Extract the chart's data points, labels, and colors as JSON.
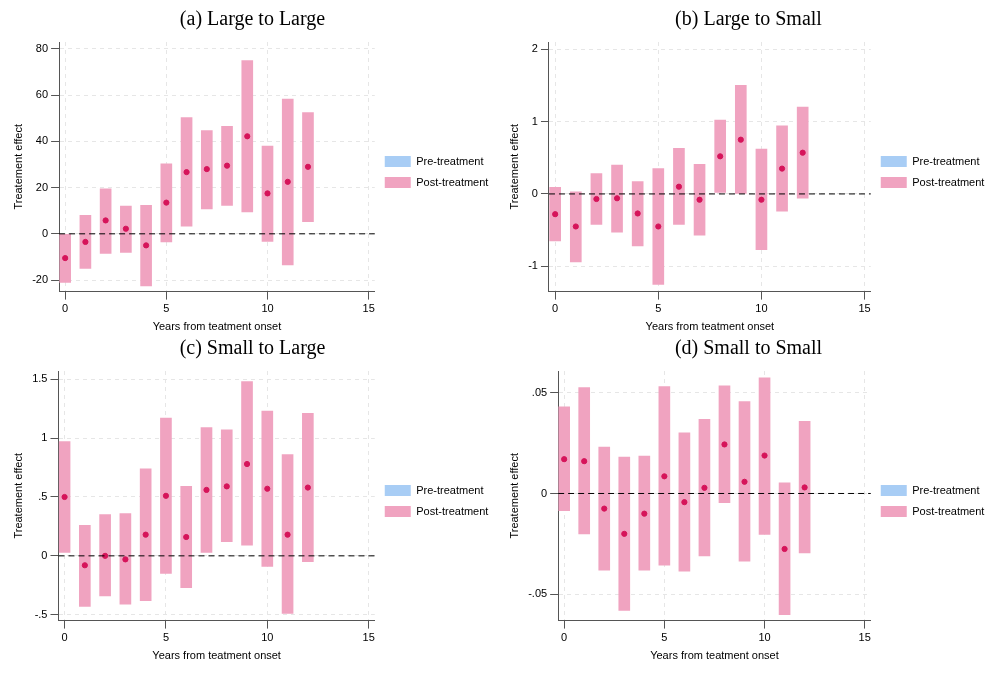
{
  "chart_data": [
    {
      "type": "scatter",
      "title": "(a) Large to Large",
      "xlabel": "Years from teatment onset",
      "ylabel": "Treatement effect",
      "xlim": [
        -0.3,
        15.3
      ],
      "xticks": [
        0,
        5,
        10,
        15
      ],
      "ylim": [
        -25,
        83
      ],
      "yticks": [
        -20,
        0,
        20,
        40,
        60,
        80
      ],
      "grid": true,
      "legend": "right",
      "marker": "circle",
      "x": [
        0,
        1,
        2,
        3,
        4,
        5,
        6,
        7,
        8,
        9,
        10,
        11,
        12
      ],
      "ref_lines": [
        {
          "axis": "y",
          "value": 0,
          "color": "#000000",
          "line_style": "dashed"
        }
      ],
      "series": [
        {
          "name": "Pre-treatment",
          "type": "bar",
          "color": "#a8cdf5",
          "values": [
            null,
            null,
            null,
            null,
            null,
            null,
            null,
            null,
            null,
            null,
            null,
            null,
            null
          ]
        },
        {
          "name": "Post-treatment",
          "type": "bar",
          "color": "#f0a3c0",
          "values": [
            21,
            23,
            28,
            20,
            34.8,
            33.8,
            47,
            33.9,
            34.2,
            65.5,
            41.3,
            71.8,
            47.2
          ],
          "base": [
            -21,
            -15,
            -8.5,
            -8,
            -22.5,
            -3.5,
            3.3,
            10.8,
            12.3,
            9.5,
            -3.3,
            -13.5,
            5.3
          ]
        },
        {
          "type": "scatter",
          "color": "#d6145a",
          "values": [
            -10.5,
            -3.5,
            5.8,
            2.2,
            -5,
            13.5,
            26.7,
            28,
            29.5,
            42.2,
            17.5,
            22.5,
            29
          ]
        }
      ]
    },
    {
      "type": "scatter",
      "title": "(b) Large to Small",
      "xlabel": "Years from teatment onset",
      "ylabel": "Treatement effect",
      "xlim": [
        -0.3,
        15.3
      ],
      "xticks": [
        0,
        5,
        10,
        15
      ],
      "ylim": [
        -1.35,
        2.1
      ],
      "yticks": [
        -1,
        0,
        1,
        2
      ],
      "grid": true,
      "legend": "right",
      "marker": "circle",
      "x": [
        0,
        1,
        2,
        3,
        4,
        5,
        6,
        7,
        8,
        9,
        10,
        11,
        12
      ],
      "ref_lines": [
        {
          "axis": "y",
          "value": 0,
          "color": "#000000",
          "line_style": "dashed"
        }
      ],
      "series": [
        {
          "name": "Pre-treatment",
          "type": "bar",
          "color": "#a8cdf5",
          "values": [
            null,
            null,
            null,
            null,
            null,
            null,
            null,
            null,
            null,
            null,
            null,
            null,
            null
          ]
        },
        {
          "name": "Post-treatment",
          "type": "bar",
          "color": "#f0a3c0",
          "values": [
            0.74,
            0.97,
            0.7,
            0.93,
            0.89,
            1.6,
            1.05,
            0.98,
            1,
            1.5,
            1.39,
            1.18,
            1.26
          ],
          "base": [
            -0.65,
            -0.94,
            -0.42,
            -0.53,
            -0.72,
            -1.25,
            -0.42,
            -0.57,
            0.02,
            0,
            -0.77,
            -0.24,
            -0.06
          ]
        },
        {
          "type": "scatter",
          "color": "#d6145a",
          "values": [
            -0.28,
            -0.45,
            -0.07,
            -0.06,
            -0.27,
            -0.45,
            0.1,
            -0.08,
            0.52,
            0.75,
            -0.08,
            0.35,
            0.57
          ]
        }
      ]
    },
    {
      "type": "scatter",
      "title": "(c) Small to Large",
      "xlabel": "Years from teatment onset",
      "ylabel": "Treatement effect",
      "xlim": [
        -0.3,
        15.3
      ],
      "xticks": [
        0,
        5,
        10,
        15
      ],
      "ylim": [
        -0.55,
        1.57
      ],
      "yticks": [
        {
          "value": -0.5,
          "label": "-.5"
        },
        0,
        {
          "value": 0.5,
          "label": ".5"
        },
        1,
        1.5
      ],
      "grid": true,
      "legend": "right",
      "marker": "circle",
      "x": [
        0,
        1,
        2,
        3,
        4,
        5,
        6,
        7,
        8,
        9,
        10,
        11,
        12
      ],
      "ref_lines": [
        {
          "axis": "y",
          "value": 0,
          "color": "#000000",
          "line_style": "dashed"
        }
      ],
      "series": [
        {
          "name": "Pre-treatment",
          "type": "bar",
          "color": "#a8cdf5",
          "values": [
            null,
            null,
            null,
            null,
            null,
            null,
            null,
            null,
            null,
            null,
            null,
            null,
            null
          ]
        },
        {
          "name": "Post-treatment",
          "type": "bar",
          "color": "#f0a3c0",
          "values": [
            0.94,
            0.69,
            0.69,
            0.77,
            1.12,
            1.32,
            0.86,
            1.06,
            0.95,
            1.39,
            1.32,
            1.35,
            1.26
          ],
          "base": [
            0.03,
            -0.43,
            -0.34,
            -0.41,
            -0.38,
            -0.15,
            -0.27,
            0.03,
            0.12,
            0.09,
            -0.09,
            -0.49,
            -0.05
          ]
        },
        {
          "type": "scatter",
          "color": "#d6145a",
          "values": [
            0.5,
            -0.08,
            0,
            -0.03,
            0.18,
            0.51,
            0.16,
            0.56,
            0.59,
            0.78,
            0.57,
            0.18,
            0.58
          ]
        }
      ]
    },
    {
      "type": "scatter",
      "title": "(d) Small to Small",
      "xlabel": "Years from teatment onset",
      "ylabel": "Treatement effect",
      "xlim": [
        -0.3,
        15.3
      ],
      "xticks": [
        0,
        5,
        10,
        15
      ],
      "ylim": [
        -0.063,
        0.0607
      ],
      "yticks": [
        {
          "value": -0.05,
          "label": "-.05"
        },
        0,
        {
          "value": 0.05,
          "label": ".05"
        }
      ],
      "grid": true,
      "legend": "right",
      "marker": "circle",
      "x": [
        0,
        1,
        2,
        3,
        4,
        5,
        6,
        7,
        8,
        9,
        10,
        11,
        12
      ],
      "ref_lines": [
        {
          "axis": "y",
          "value": 0,
          "color": "#000000",
          "line_style": "dashed"
        }
      ],
      "series": [
        {
          "name": "Pre-treatment",
          "type": "bar",
          "color": "#a8cdf5",
          "values": [
            null,
            null,
            null,
            null,
            null,
            null,
            null,
            null,
            null,
            null,
            null,
            null,
            null
          ]
        },
        {
          "name": "Post-treatment",
          "type": "bar",
          "color": "#f0a3c0",
          "values": [
            0.0515,
            0.0725,
            0.061,
            0.076,
            0.0565,
            0.0885,
            0.0685,
            0.0678,
            0.0578,
            0.079,
            0.0776,
            0.0653,
            0.0653
          ],
          "base": [
            -0.0085,
            -0.02,
            -0.038,
            -0.058,
            -0.038,
            -0.0355,
            -0.0385,
            -0.031,
            -0.0045,
            -0.0335,
            -0.0203,
            -0.06,
            -0.0295
          ]
        },
        {
          "type": "scatter",
          "color": "#d6145a",
          "values": [
            0.017,
            0.016,
            -0.0075,
            -0.02,
            -0.01,
            0.0085,
            -0.0043,
            0.0028,
            0.0243,
            0.0058,
            0.0188,
            -0.0275,
            0.003
          ]
        }
      ]
    }
  ]
}
